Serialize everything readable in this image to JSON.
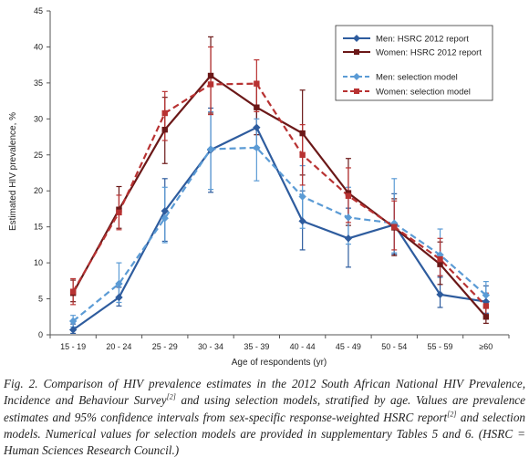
{
  "chart_data": {
    "type": "line",
    "xlabel": "Age of respondents (yr)",
    "ylabel": "Estimated HIV prevalence, %",
    "ylim": [
      0,
      45
    ],
    "yticks": [
      0,
      5,
      10,
      15,
      20,
      25,
      30,
      35,
      40,
      45
    ],
    "grid": false,
    "legend_position": "top-right",
    "categories": [
      "15 - 19",
      "20 - 24",
      "25 - 29",
      "30 - 34",
      "35 - 39",
      "40 - 44",
      "45 - 49",
      "50 - 54",
      "55 - 59",
      "≥60"
    ],
    "series": [
      {
        "name": "Men: HSRC 2012 report",
        "color": "#2e5c9e",
        "dash": "solid",
        "marker": "diamond",
        "values": [
          0.7,
          5.2,
          17.2,
          25.7,
          28.8,
          15.8,
          13.4,
          15.3,
          5.6,
          4.6
        ],
        "ci_lower": [
          0.2,
          4.0,
          13.0,
          19.8,
          25.8,
          11.8,
          9.4,
          11.2,
          3.8,
          3.0
        ],
        "ci_upper": [
          1.5,
          6.6,
          21.7,
          31.5,
          31.5,
          20.0,
          17.6,
          19.6,
          8.0,
          6.8
        ]
      },
      {
        "name": "Women: HSRC 2012 report",
        "color": "#6b1818",
        "dash": "solid",
        "marker": "square",
        "values": [
          5.8,
          17.4,
          28.5,
          36.0,
          31.6,
          28.0,
          19.7,
          14.9,
          9.8,
          2.5
        ],
        "ci_lower": [
          4.6,
          14.8,
          23.8,
          30.8,
          27.8,
          22.2,
          15.2,
          11.0,
          7.0,
          1.6
        ],
        "ci_upper": [
          7.6,
          20.6,
          33.0,
          41.4,
          34.8,
          34.0,
          24.5,
          18.9,
          12.9,
          4.0
        ]
      },
      {
        "name": "Men: selection model",
        "color": "#5b9bd5",
        "dash": "dashed",
        "marker": "diamond",
        "values": [
          1.9,
          7.1,
          16.2,
          25.8,
          26.0,
          19.2,
          16.3,
          15.5,
          11.1,
          5.5
        ],
        "ci_lower": [
          1.1,
          4.5,
          12.8,
          20.2,
          21.4,
          14.8,
          12.6,
          11.4,
          8.2,
          3.8
        ],
        "ci_upper": [
          2.7,
          10.0,
          20.5,
          31.0,
          30.0,
          23.5,
          20.5,
          21.7,
          14.7,
          7.4
        ]
      },
      {
        "name": "Women: selection model",
        "color": "#b83232",
        "dash": "dashed",
        "marker": "square",
        "values": [
          6.0,
          17.0,
          30.8,
          34.8,
          34.9,
          25.0,
          19.3,
          15.0,
          10.5,
          4.0
        ],
        "ci_lower": [
          4.2,
          14.6,
          27.0,
          30.6,
          31.0,
          20.8,
          15.6,
          11.8,
          8.2,
          2.6
        ],
        "ci_upper": [
          7.8,
          19.4,
          33.8,
          40.0,
          38.2,
          29.2,
          23.2,
          18.6,
          13.4,
          5.8
        ]
      }
    ]
  },
  "caption": {
    "part1": "Fig. 2. Comparison of HIV prevalence estimates in the 2012 South African National HIV Prevalence, Incidence and Behaviour Survey",
    "ref1": "[2]",
    "part2": " and using selection models, stratified by age. Values are prevalence estimates and 95% confidence intervals from sex-specific response-weighted HSRC report",
    "ref2": "[2]",
    "part3": " and selection models. Numerical values for selection models are provided in supplementary Tables 5 and 6. (HSRC = Human Sciences Research Council.)"
  }
}
